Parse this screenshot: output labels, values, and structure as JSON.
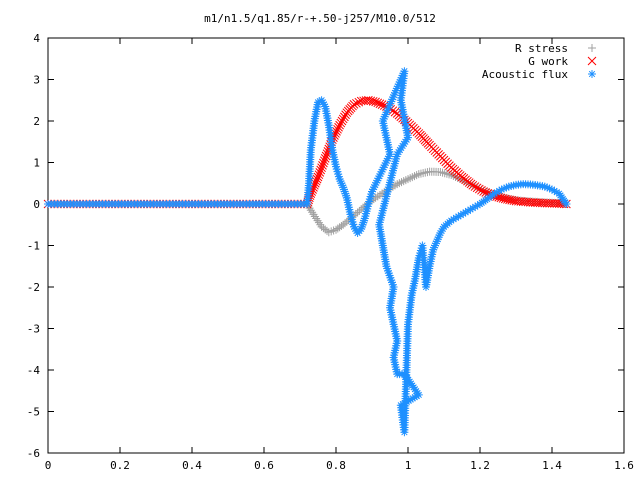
{
  "chart_data": {
    "type": "scatter",
    "title": "m1/n1.5/q1.85/r-+.50-j257/M10.0/512",
    "xlabel": "",
    "ylabel": "",
    "xlim": [
      0,
      1.6
    ],
    "ylim": [
      -6,
      4
    ],
    "x_ticks": [
      "0",
      "0.2",
      "0.4",
      "0.6",
      "0.8",
      "1",
      "1.2",
      "1.4",
      "1.6"
    ],
    "y_ticks": [
      "4",
      "3",
      "2",
      "1",
      "0",
      "-1",
      "-2",
      "-3",
      "-4",
      "-5",
      "-6"
    ],
    "grid": false,
    "legend_position": "top-right",
    "series": [
      {
        "name": "R stress",
        "marker": "plus",
        "color": "#a0a0a0",
        "points": [
          [
            0,
            0
          ],
          [
            0.72,
            0
          ],
          [
            0.73,
            -0.15
          ],
          [
            0.745,
            -0.35
          ],
          [
            0.76,
            -0.55
          ],
          [
            0.78,
            -0.68
          ],
          [
            0.8,
            -0.62
          ],
          [
            0.82,
            -0.5
          ],
          [
            0.85,
            -0.28
          ],
          [
            0.88,
            -0.05
          ],
          [
            0.91,
            0.15
          ],
          [
            0.94,
            0.32
          ],
          [
            0.97,
            0.48
          ],
          [
            1.0,
            0.6
          ],
          [
            1.03,
            0.72
          ],
          [
            1.06,
            0.78
          ],
          [
            1.09,
            0.77
          ],
          [
            1.12,
            0.7
          ],
          [
            1.15,
            0.58
          ],
          [
            1.18,
            0.45
          ],
          [
            1.21,
            0.32
          ],
          [
            1.24,
            0.22
          ],
          [
            1.27,
            0.14
          ],
          [
            1.3,
            0.09
          ],
          [
            1.34,
            0.06
          ],
          [
            1.38,
            0.04
          ],
          [
            1.42,
            0.02
          ],
          [
            1.44,
            0.0
          ]
        ]
      },
      {
        "name": "G work",
        "marker": "cross",
        "color": "#ff0000",
        "points": [
          [
            0,
            0
          ],
          [
            0.72,
            0
          ],
          [
            0.73,
            0.25
          ],
          [
            0.75,
            0.65
          ],
          [
            0.77,
            1.1
          ],
          [
            0.79,
            1.55
          ],
          [
            0.81,
            1.9
          ],
          [
            0.83,
            2.2
          ],
          [
            0.85,
            2.4
          ],
          [
            0.87,
            2.48
          ],
          [
            0.89,
            2.5
          ],
          [
            0.91,
            2.46
          ],
          [
            0.94,
            2.35
          ],
          [
            0.97,
            2.18
          ],
          [
            1.0,
            1.95
          ],
          [
            1.03,
            1.7
          ],
          [
            1.06,
            1.42
          ],
          [
            1.09,
            1.15
          ],
          [
            1.12,
            0.88
          ],
          [
            1.15,
            0.65
          ],
          [
            1.18,
            0.45
          ],
          [
            1.21,
            0.3
          ],
          [
            1.24,
            0.19
          ],
          [
            1.27,
            0.12
          ],
          [
            1.3,
            0.07
          ],
          [
            1.34,
            0.04
          ],
          [
            1.38,
            0.02
          ],
          [
            1.42,
            0.01
          ],
          [
            1.44,
            0.0
          ]
        ]
      },
      {
        "name": "Acoustic flux",
        "marker": "star",
        "color": "#1e90ff",
        "points": [
          [
            0,
            0
          ],
          [
            0.72,
            0
          ],
          [
            0.725,
            0.5
          ],
          [
            0.73,
            1.3
          ],
          [
            0.74,
            2.0
          ],
          [
            0.75,
            2.45
          ],
          [
            0.76,
            2.5
          ],
          [
            0.77,
            2.35
          ],
          [
            0.78,
            1.9
          ],
          [
            0.79,
            1.3
          ],
          [
            0.8,
            0.9
          ],
          [
            0.81,
            0.6
          ],
          [
            0.82,
            0.4
          ],
          [
            0.83,
            0.15
          ],
          [
            0.84,
            -0.25
          ],
          [
            0.85,
            -0.55
          ],
          [
            0.86,
            -0.7
          ],
          [
            0.87,
            -0.6
          ],
          [
            0.88,
            -0.35
          ],
          [
            0.89,
            0.0
          ],
          [
            0.9,
            0.3
          ],
          [
            0.95,
            1.2
          ],
          [
            0.93,
            2.0
          ],
          [
            0.99,
            3.2
          ],
          [
            0.98,
            2.5
          ],
          [
            1.0,
            1.6
          ],
          [
            0.97,
            1.2
          ],
          [
            0.92,
            -0.5
          ],
          [
            0.94,
            -1.5
          ],
          [
            0.96,
            -2.0
          ],
          [
            0.95,
            -2.5
          ],
          [
            0.97,
            -3.3
          ],
          [
            0.96,
            -3.7
          ],
          [
            0.97,
            -4.1
          ],
          [
            0.99,
            -4.1
          ],
          [
            1.03,
            -4.6
          ],
          [
            0.98,
            -4.85
          ],
          [
            0.99,
            -5.5
          ],
          [
            1.0,
            -2.9
          ],
          [
            1.01,
            -2.2
          ],
          [
            1.02,
            -1.8
          ],
          [
            1.03,
            -1.3
          ],
          [
            1.04,
            -1.0
          ],
          [
            1.05,
            -2.0
          ],
          [
            1.06,
            -1.5
          ],
          [
            1.07,
            -1.1
          ],
          [
            1.08,
            -0.9
          ],
          [
            1.09,
            -0.7
          ],
          [
            1.1,
            -0.55
          ],
          [
            1.12,
            -0.4
          ],
          [
            1.14,
            -0.3
          ],
          [
            1.16,
            -0.2
          ],
          [
            1.18,
            -0.1
          ],
          [
            1.2,
            0.0
          ],
          [
            1.22,
            0.12
          ],
          [
            1.24,
            0.25
          ],
          [
            1.26,
            0.35
          ],
          [
            1.28,
            0.42
          ],
          [
            1.3,
            0.46
          ],
          [
            1.32,
            0.48
          ],
          [
            1.34,
            0.47
          ],
          [
            1.36,
            0.45
          ],
          [
            1.38,
            0.42
          ],
          [
            1.4,
            0.35
          ],
          [
            1.42,
            0.25
          ],
          [
            1.43,
            0.12
          ],
          [
            1.44,
            0.0
          ]
        ]
      }
    ]
  }
}
